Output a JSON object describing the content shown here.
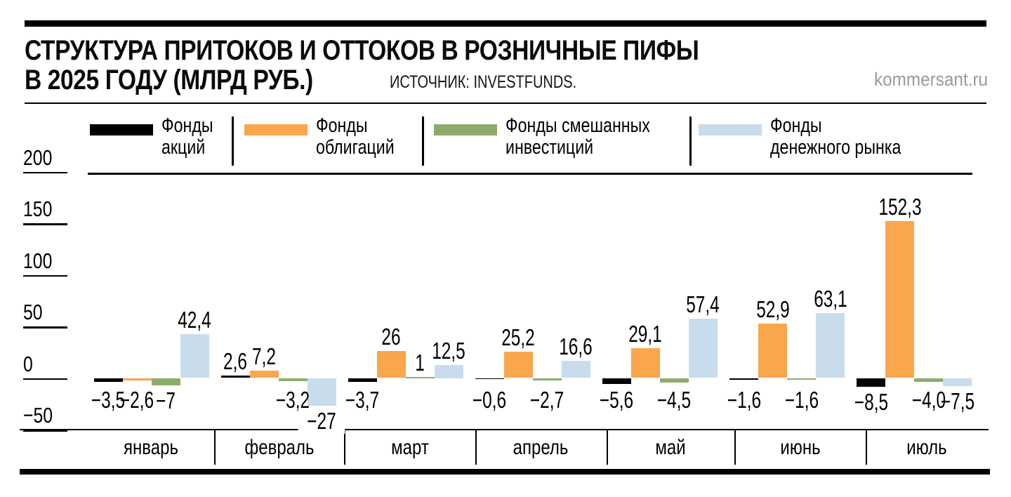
{
  "header": {
    "title_line1": "СТРУКТУРА ПРИТОКОВ И ОТТОКОВ В РОЗНИЧНЫЕ ПИФЫ",
    "title_line2": "В 2025 ГОДУ (МЛРД РУБ.)",
    "source": "ИСТОЧНИК: INVESTFUNDS.",
    "brand": "kommersant.ru"
  },
  "colors": {
    "equity": "#000000",
    "bonds": "#FAA64C",
    "mixed": "#8DAC6C",
    "money_market": "#C9DCEC",
    "brand_gray": "#9A9A9A"
  },
  "legend": [
    {
      "line1": "Фонды",
      "line2": "акций",
      "color": "#000000"
    },
    {
      "line1": "Фонды",
      "line2": "облигаций",
      "color": "#FAA64C"
    },
    {
      "line1": "Фонды смешанных",
      "line2": "инвестиций",
      "color": "#8DAC6C"
    },
    {
      "line1": "Фонды",
      "line2": "денежного рынка",
      "color": "#C9DCEC"
    }
  ],
  "chart_data": {
    "type": "bar",
    "title": "Структура притоков и оттоков в розничные ПИФы в 2025 году (млрд руб.)",
    "categories": [
      "январь",
      "февраль",
      "март",
      "апрель",
      "май",
      "июнь",
      "июль"
    ],
    "series": [
      {
        "name": "Фонды акций",
        "color": "#000000",
        "values": [
          -3.5,
          2.6,
          -3.7,
          -0.6,
          -5.6,
          -1.6,
          -8.5
        ],
        "labels": [
          "−3,5",
          "2,6",
          "−3,7",
          "−0,6",
          "−5,6",
          "−1,6",
          "−8,5"
        ]
      },
      {
        "name": "Фонды облигаций",
        "color": "#FAA64C",
        "values": [
          -2.6,
          7.2,
          26,
          25.2,
          29.1,
          52.9,
          152.3
        ],
        "labels": [
          "−2,6",
          "7,2",
          "26",
          "25,2",
          "29,1",
          "52,9",
          "152,3"
        ]
      },
      {
        "name": "Фонды смешанных инвестиций",
        "color": "#8DAC6C",
        "values": [
          -7,
          -3.2,
          1,
          -2.7,
          -4.5,
          -1.6,
          -4.0
        ],
        "labels": [
          "−7",
          "−3,2",
          "1",
          "−2,7",
          "−4,5",
          "−1,6",
          "−4,0"
        ]
      },
      {
        "name": "Фонды денежного рынка",
        "color": "#C9DCEC",
        "values": [
          42.4,
          -27,
          12.5,
          16.6,
          57.4,
          63.1,
          -7.5
        ],
        "labels": [
          "42,4",
          "−27",
          "12,5",
          "16,6",
          "57,4",
          "63,1",
          "−7,5"
        ]
      }
    ],
    "yticks": [
      200,
      150,
      100,
      50,
      0,
      -50
    ],
    "ytick_labels": [
      "200",
      "150",
      "100",
      "50",
      "0",
      "−50"
    ],
    "ylim": [
      -50,
      200
    ],
    "unit": "млрд руб.",
    "grid": false,
    "legend_position": "top"
  }
}
